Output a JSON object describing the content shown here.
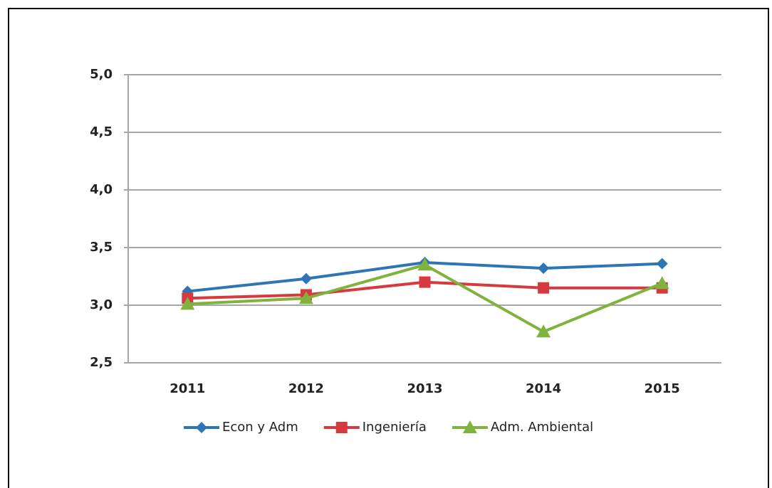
{
  "chart_data": {
    "type": "line",
    "categories": [
      "2011",
      "2012",
      "2013",
      "2014",
      "2015"
    ],
    "series": [
      {
        "name": "Econ y Adm",
        "color": "#2e75b6",
        "marker": "diamond",
        "values": [
          3.12,
          3.23,
          3.37,
          3.32,
          3.36
        ]
      },
      {
        "name": "Ingeniería",
        "color": "#d63a3f",
        "marker": "square",
        "values": [
          3.06,
          3.09,
          3.2,
          3.15,
          3.15
        ]
      },
      {
        "name": "Adm. Ambiental",
        "color": "#7fb33d",
        "marker": "triangle",
        "values": [
          3.01,
          3.06,
          3.35,
          2.77,
          3.19
        ]
      }
    ],
    "ylim": [
      2.5,
      5
    ],
    "yticks": [
      {
        "value": 2.5,
        "label": "2,5"
      },
      {
        "value": 3,
        "label": "3,0"
      },
      {
        "value": 3.5,
        "label": "3,5"
      },
      {
        "value": 4,
        "label": "4,0"
      },
      {
        "value": 4.5,
        "label": "4,5"
      },
      {
        "value": 5,
        "label": "5,0"
      }
    ],
    "grid": true,
    "legend": "bottom"
  }
}
